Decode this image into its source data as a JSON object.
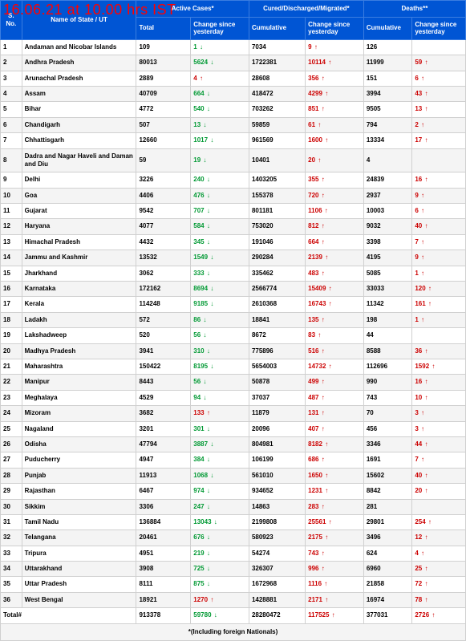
{
  "header": {
    "timestamp": "16.06.21 at 10.00 hrs IST"
  },
  "columns": {
    "sno": "S. No.",
    "state": "Name of State / UT",
    "active_group": "Active Cases*",
    "cured_group": "Cured/Discharged/Migrated*",
    "deaths_group": "Deaths**",
    "total": "Total",
    "cumulative": "Cumulative",
    "change": "Change since yesterday"
  },
  "arrows": {
    "down": "↓",
    "up": "↑"
  },
  "rows": [
    {
      "sno": "1",
      "name": "Andaman and Nicobar Islands",
      "active": "109",
      "achg": "1",
      "adir": "down",
      "cured": "7034",
      "cchg": "9",
      "cdir": "up",
      "deaths": "126",
      "dchg": "",
      "ddir": ""
    },
    {
      "sno": "2",
      "name": "Andhra Pradesh",
      "active": "80013",
      "achg": "5624",
      "adir": "down",
      "cured": "1722381",
      "cchg": "10114",
      "cdir": "up",
      "deaths": "11999",
      "dchg": "59",
      "ddir": "up"
    },
    {
      "sno": "3",
      "name": "Arunachal Pradesh",
      "active": "2889",
      "achg": "4",
      "adir": "up",
      "cured": "28608",
      "cchg": "356",
      "cdir": "up",
      "deaths": "151",
      "dchg": "6",
      "ddir": "up"
    },
    {
      "sno": "4",
      "name": "Assam",
      "active": "40709",
      "achg": "664",
      "adir": "down",
      "cured": "418472",
      "cchg": "4299",
      "cdir": "up",
      "deaths": "3994",
      "dchg": "43",
      "ddir": "up"
    },
    {
      "sno": "5",
      "name": "Bihar",
      "active": "4772",
      "achg": "540",
      "adir": "down",
      "cured": "703262",
      "cchg": "851",
      "cdir": "up",
      "deaths": "9505",
      "dchg": "13",
      "ddir": "up"
    },
    {
      "sno": "6",
      "name": "Chandigarh",
      "active": "507",
      "achg": "13",
      "adir": "down",
      "cured": "59859",
      "cchg": "61",
      "cdir": "up",
      "deaths": "794",
      "dchg": "2",
      "ddir": "up"
    },
    {
      "sno": "7",
      "name": "Chhattisgarh",
      "active": "12660",
      "achg": "1017",
      "adir": "down",
      "cured": "961569",
      "cchg": "1600",
      "cdir": "up",
      "deaths": "13334",
      "dchg": "17",
      "ddir": "up"
    },
    {
      "sno": "8",
      "name": "Dadra and Nagar Haveli and Daman and Diu",
      "active": "59",
      "achg": "19",
      "adir": "down",
      "cured": "10401",
      "cchg": "20",
      "cdir": "up",
      "deaths": "4",
      "dchg": "",
      "ddir": ""
    },
    {
      "sno": "9",
      "name": "Delhi",
      "active": "3226",
      "achg": "240",
      "adir": "down",
      "cured": "1403205",
      "cchg": "355",
      "cdir": "up",
      "deaths": "24839",
      "dchg": "16",
      "ddir": "up"
    },
    {
      "sno": "10",
      "name": "Goa",
      "active": "4406",
      "achg": "476",
      "adir": "down",
      "cured": "155378",
      "cchg": "720",
      "cdir": "up",
      "deaths": "2937",
      "dchg": "9",
      "ddir": "up"
    },
    {
      "sno": "11",
      "name": "Gujarat",
      "active": "9542",
      "achg": "707",
      "adir": "down",
      "cured": "801181",
      "cchg": "1106",
      "cdir": "up",
      "deaths": "10003",
      "dchg": "6",
      "ddir": "up"
    },
    {
      "sno": "12",
      "name": "Haryana",
      "active": "4077",
      "achg": "584",
      "adir": "down",
      "cured": "753020",
      "cchg": "812",
      "cdir": "up",
      "deaths": "9032",
      "dchg": "40",
      "ddir": "up"
    },
    {
      "sno": "13",
      "name": "Himachal Pradesh",
      "active": "4432",
      "achg": "345",
      "adir": "down",
      "cured": "191046",
      "cchg": "664",
      "cdir": "up",
      "deaths": "3398",
      "dchg": "7",
      "ddir": "up"
    },
    {
      "sno": "14",
      "name": "Jammu and Kashmir",
      "active": "13532",
      "achg": "1549",
      "adir": "down",
      "cured": "290284",
      "cchg": "2139",
      "cdir": "up",
      "deaths": "4195",
      "dchg": "9",
      "ddir": "up"
    },
    {
      "sno": "15",
      "name": "Jharkhand",
      "active": "3062",
      "achg": "333",
      "adir": "down",
      "cured": "335462",
      "cchg": "483",
      "cdir": "up",
      "deaths": "5085",
      "dchg": "1",
      "ddir": "up"
    },
    {
      "sno": "16",
      "name": "Karnataka",
      "active": "172162",
      "achg": "8694",
      "adir": "down",
      "cured": "2566774",
      "cchg": "15409",
      "cdir": "up",
      "deaths": "33033",
      "dchg": "120",
      "ddir": "up"
    },
    {
      "sno": "17",
      "name": "Kerala",
      "active": "114248",
      "achg": "9185",
      "adir": "down",
      "cured": "2610368",
      "cchg": "16743",
      "cdir": "up",
      "deaths": "11342",
      "dchg": "161",
      "ddir": "up"
    },
    {
      "sno": "18",
      "name": "Ladakh",
      "active": "572",
      "achg": "86",
      "adir": "down",
      "cured": "18841",
      "cchg": "135",
      "cdir": "up",
      "deaths": "198",
      "dchg": "1",
      "ddir": "up"
    },
    {
      "sno": "19",
      "name": "Lakshadweep",
      "active": "520",
      "achg": "56",
      "adir": "down",
      "cured": "8672",
      "cchg": "83",
      "cdir": "up",
      "deaths": "44",
      "dchg": "",
      "ddir": ""
    },
    {
      "sno": "20",
      "name": "Madhya Pradesh",
      "active": "3941",
      "achg": "310",
      "adir": "down",
      "cured": "775896",
      "cchg": "516",
      "cdir": "up",
      "deaths": "8588",
      "dchg": "36",
      "ddir": "up"
    },
    {
      "sno": "21",
      "name": "Maharashtra",
      "active": "150422",
      "achg": "8195",
      "adir": "down",
      "cured": "5654003",
      "cchg": "14732",
      "cdir": "up",
      "deaths": "112696",
      "dchg": "1592",
      "ddir": "up"
    },
    {
      "sno": "22",
      "name": "Manipur",
      "active": "8443",
      "achg": "56",
      "adir": "down",
      "cured": "50878",
      "cchg": "499",
      "cdir": "up",
      "deaths": "990",
      "dchg": "16",
      "ddir": "up"
    },
    {
      "sno": "23",
      "name": "Meghalaya",
      "active": "4529",
      "achg": "94",
      "adir": "down",
      "cured": "37037",
      "cchg": "487",
      "cdir": "up",
      "deaths": "743",
      "dchg": "10",
      "ddir": "up"
    },
    {
      "sno": "24",
      "name": "Mizoram",
      "active": "3682",
      "achg": "133",
      "adir": "up",
      "cured": "11879",
      "cchg": "131",
      "cdir": "up",
      "deaths": "70",
      "dchg": "3",
      "ddir": "up"
    },
    {
      "sno": "25",
      "name": "Nagaland",
      "active": "3201",
      "achg": "301",
      "adir": "down",
      "cured": "20096",
      "cchg": "407",
      "cdir": "up",
      "deaths": "456",
      "dchg": "3",
      "ddir": "up"
    },
    {
      "sno": "26",
      "name": "Odisha",
      "active": "47794",
      "achg": "3887",
      "adir": "down",
      "cured": "804981",
      "cchg": "8182",
      "cdir": "up",
      "deaths": "3346",
      "dchg": "44",
      "ddir": "up"
    },
    {
      "sno": "27",
      "name": "Puducherry",
      "active": "4947",
      "achg": "384",
      "adir": "down",
      "cured": "106199",
      "cchg": "686",
      "cdir": "up",
      "deaths": "1691",
      "dchg": "7",
      "ddir": "up"
    },
    {
      "sno": "28",
      "name": "Punjab",
      "active": "11913",
      "achg": "1068",
      "adir": "down",
      "cured": "561010",
      "cchg": "1650",
      "cdir": "up",
      "deaths": "15602",
      "dchg": "40",
      "ddir": "up"
    },
    {
      "sno": "29",
      "name": "Rajasthan",
      "active": "6467",
      "achg": "974",
      "adir": "down",
      "cured": "934652",
      "cchg": "1231",
      "cdir": "up",
      "deaths": "8842",
      "dchg": "20",
      "ddir": "up"
    },
    {
      "sno": "30",
      "name": "Sikkim",
      "active": "3306",
      "achg": "247",
      "adir": "down",
      "cured": "14863",
      "cchg": "283",
      "cdir": "up",
      "deaths": "281",
      "dchg": "",
      "ddir": ""
    },
    {
      "sno": "31",
      "name": "Tamil Nadu",
      "active": "136884",
      "achg": "13043",
      "adir": "down",
      "cured": "2199808",
      "cchg": "25561",
      "cdir": "up",
      "deaths": "29801",
      "dchg": "254",
      "ddir": "up"
    },
    {
      "sno": "32",
      "name": "Telangana",
      "active": "20461",
      "achg": "676",
      "adir": "down",
      "cured": "580923",
      "cchg": "2175",
      "cdir": "up",
      "deaths": "3496",
      "dchg": "12",
      "ddir": "up"
    },
    {
      "sno": "33",
      "name": "Tripura",
      "active": "4951",
      "achg": "219",
      "adir": "down",
      "cured": "54274",
      "cchg": "743",
      "cdir": "up",
      "deaths": "624",
      "dchg": "4",
      "ddir": "up"
    },
    {
      "sno": "34",
      "name": "Uttarakhand",
      "active": "3908",
      "achg": "725",
      "adir": "down",
      "cured": "326307",
      "cchg": "996",
      "cdir": "up",
      "deaths": "6960",
      "dchg": "25",
      "ddir": "up"
    },
    {
      "sno": "35",
      "name": "Uttar Pradesh",
      "active": "8111",
      "achg": "875",
      "adir": "down",
      "cured": "1672968",
      "cchg": "1116",
      "cdir": "up",
      "deaths": "21858",
      "dchg": "72",
      "ddir": "up"
    },
    {
      "sno": "36",
      "name": "West Bengal",
      "active": "18921",
      "achg": "1270",
      "adir": "up",
      "cured": "1428881",
      "cchg": "2171",
      "cdir": "up",
      "deaths": "16974",
      "dchg": "78",
      "ddir": "up"
    }
  ],
  "total": {
    "label": "Total#",
    "active": "913378",
    "achg": "59780",
    "adir": "down",
    "cured": "28280472",
    "cchg": "117525",
    "cdir": "up",
    "deaths": "377031",
    "dchg": "2726",
    "ddir": "up"
  },
  "footnote": "*(Including foreign Nationals)"
}
